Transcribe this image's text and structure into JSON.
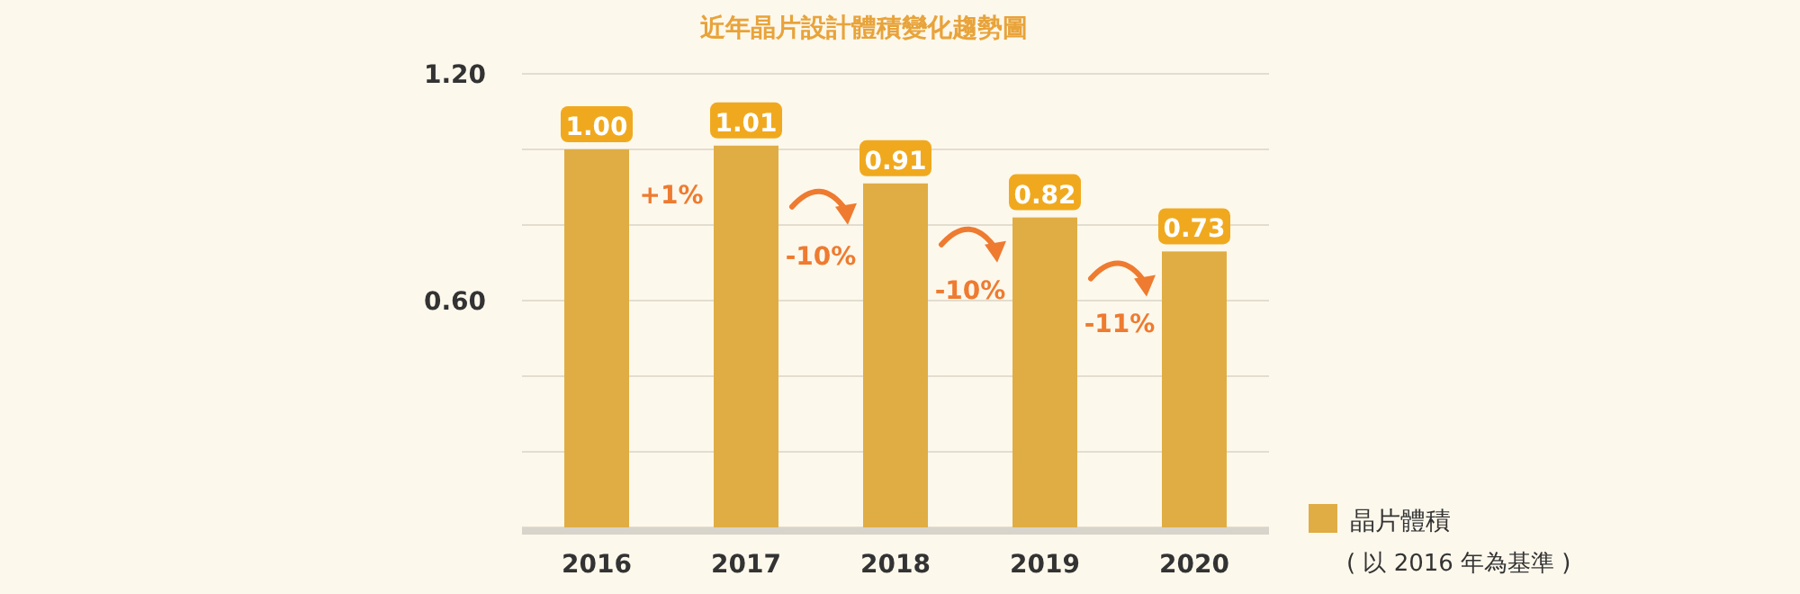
{
  "chart_data": {
    "type": "bar",
    "title": "近年晶片設計體積變化趨勢圖",
    "categories": [
      "2016",
      "2017",
      "2018",
      "2019",
      "2020"
    ],
    "series": [
      {
        "name": "晶片體積",
        "color": "#e0ad45",
        "values": [
          1.0,
          1.01,
          0.91,
          0.82,
          0.73
        ]
      }
    ],
    "ylim": [
      0,
      1.2
    ],
    "yticks": [
      {
        "value": 0,
        "label": null
      },
      {
        "value": 0.2,
        "label": null
      },
      {
        "value": 0.4,
        "label": null
      },
      {
        "value": 0.6,
        "label": "0.60"
      },
      {
        "value": 0.8,
        "label": null
      },
      {
        "value": 1.0,
        "label": null
      },
      {
        "value": 1.2,
        "label": "1.20"
      }
    ],
    "grid": "y",
    "value_labels": [
      "1.00",
      "1.01",
      "0.91",
      "0.82",
      "0.73"
    ],
    "legend": "bottom right",
    "annotations": [
      "+1%",
      "-10%",
      "-10%",
      "-11%",
      "( 以 2016 年為基準 )"
    ]
  }
}
